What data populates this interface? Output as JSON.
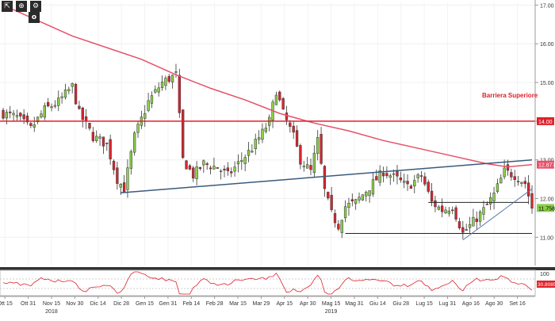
{
  "toolbar": {
    "items": [
      {
        "name": "crosshair",
        "icon": "crosshair-icon",
        "glyph": "⇱"
      },
      {
        "name": "zoom",
        "icon": "zoom-icon",
        "glyph": "⊕"
      },
      {
        "name": "options",
        "icon": "options-icon",
        "glyph": "⚙"
      }
    ],
    "marker_label": "o"
  },
  "colors": {
    "up": "#8ccf4a",
    "down": "#d9252f",
    "ma": "#e6506a",
    "resistance": "#e0202a",
    "trendline": "#3a5a7a",
    "support": "#222222",
    "rsi": "#e0202a"
  },
  "chart_data": {
    "type": "candlestick",
    "y_ticks": [
      "17.00",
      "16.00",
      "15.00",
      "14.00",
      "13.00",
      "12.00",
      "11.00"
    ],
    "ylim": [
      10.27,
      17.07
    ],
    "price_labels": {
      "resistance": "14.00",
      "ma": "12.877",
      "last": "11.758"
    },
    "annotation": "Barriera Superiore",
    "x_labels": [
      {
        "label": "Ott 15",
        "year": ""
      },
      {
        "label": "Ott 31",
        "year": ""
      },
      {
        "label": "Nov 15",
        "year": "2018"
      },
      {
        "label": "Nov 30",
        "year": ""
      },
      {
        "label": "Dic 14",
        "year": ""
      },
      {
        "label": "Dic 28",
        "year": ""
      },
      {
        "label": "Gen 15",
        "year": ""
      },
      {
        "label": "Gen 31",
        "year": ""
      },
      {
        "label": "Feb 14",
        "year": ""
      },
      {
        "label": "Feb 28",
        "year": ""
      },
      {
        "label": "Mar 15",
        "year": ""
      },
      {
        "label": "Mar 29",
        "year": ""
      },
      {
        "label": "Apr 15",
        "year": ""
      },
      {
        "label": "Apr 30",
        "year": ""
      },
      {
        "label": "Mag 15",
        "year": "2019"
      },
      {
        "label": "Mag 31",
        "year": ""
      },
      {
        "label": "Giu 14",
        "year": ""
      },
      {
        "label": "Giu 28",
        "year": ""
      },
      {
        "label": "Lug 15",
        "year": ""
      },
      {
        "label": "Lug 31",
        "year": ""
      },
      {
        "label": "Ago 16",
        "year": ""
      },
      {
        "label": "Ago 30",
        "year": ""
      },
      {
        "label": "Set 16",
        "year": ""
      }
    ],
    "price_path": [
      [
        0,
        14.2
      ],
      [
        4,
        14.1
      ],
      [
        8,
        13.8
      ],
      [
        12,
        14.3
      ],
      [
        16,
        14.5
      ],
      [
        20,
        14.9
      ],
      [
        22,
        14.2
      ],
      [
        26,
        13.6
      ],
      [
        30,
        13.4
      ],
      [
        33,
        12.5
      ],
      [
        35,
        12.25
      ],
      [
        38,
        13.6
      ],
      [
        42,
        14.5
      ],
      [
        46,
        15.0
      ],
      [
        50,
        15.2
      ],
      [
        52,
        13.0
      ],
      [
        55,
        12.6
      ],
      [
        58,
        12.9
      ],
      [
        62,
        12.8
      ],
      [
        65,
        12.6
      ],
      [
        68,
        12.9
      ],
      [
        72,
        13.3
      ],
      [
        75,
        13.7
      ],
      [
        77,
        14.0
      ],
      [
        79,
        14.8
      ],
      [
        81,
        14.2
      ],
      [
        84,
        13.6
      ],
      [
        86,
        13.0
      ],
      [
        89,
        12.7
      ],
      [
        91,
        13.5
      ],
      [
        93,
        12.2
      ],
      [
        95,
        11.6
      ],
      [
        97,
        11.3
      ],
      [
        99,
        11.8
      ],
      [
        102,
        11.9
      ],
      [
        106,
        12.3
      ],
      [
        110,
        12.7
      ],
      [
        114,
        12.5
      ],
      [
        117,
        12.3
      ],
      [
        121,
        12.6
      ],
      [
        124,
        11.9
      ],
      [
        127,
        11.7
      ],
      [
        130,
        11.8
      ],
      [
        133,
        11.1
      ],
      [
        136,
        11.4
      ],
      [
        139,
        11.7
      ],
      [
        142,
        12.1
      ],
      [
        145,
        12.7
      ],
      [
        148,
        12.6
      ],
      [
        151,
        12.4
      ],
      [
        153,
        11.758
      ]
    ],
    "ma_path": [
      [
        0,
        17.0
      ],
      [
        10,
        16.6
      ],
      [
        20,
        16.2
      ],
      [
        30,
        15.9
      ],
      [
        40,
        15.6
      ],
      [
        50,
        15.2
      ],
      [
        60,
        14.85
      ],
      [
        70,
        14.55
      ],
      [
        80,
        14.2
      ],
      [
        90,
        13.95
      ],
      [
        100,
        13.75
      ],
      [
        110,
        13.5
      ],
      [
        120,
        13.3
      ],
      [
        130,
        13.1
      ],
      [
        140,
        12.9
      ],
      [
        146,
        12.82
      ],
      [
        153,
        12.877
      ]
    ],
    "trendline": {
      "start": [
        34,
        12.15
      ],
      "end": [
        153,
        13.0
      ]
    },
    "support_lines": [
      {
        "start": [
          99,
          11.1
        ],
        "end": [
          153,
          11.1
        ]
      },
      {
        "start": [
          123,
          11.9
        ],
        "end": [
          152,
          11.9
        ]
      }
    ],
    "uptrend": {
      "start": [
        133,
        10.93
      ],
      "end": [
        153,
        12.25
      ]
    },
    "rsi": {
      "ticks": [
        "100",
        "30.8085"
      ],
      "value": 30.8085
    }
  }
}
